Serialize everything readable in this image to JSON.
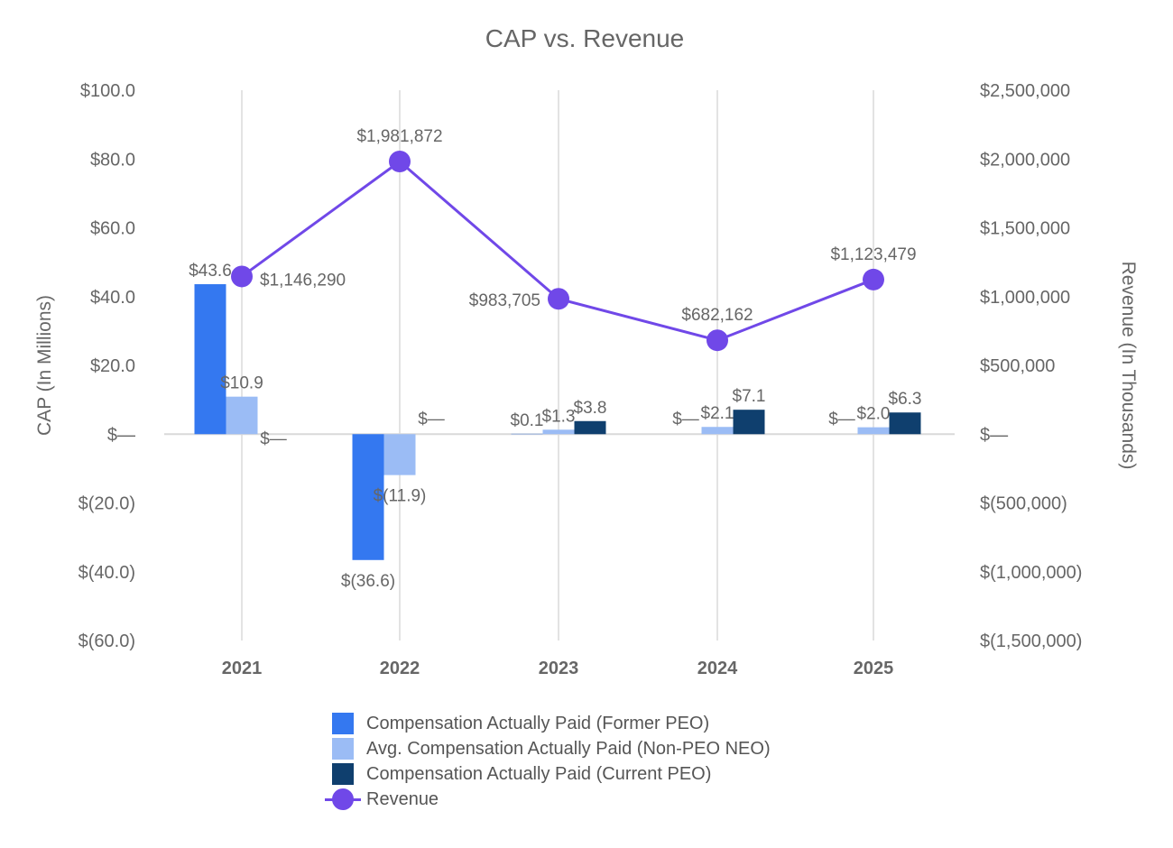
{
  "chart_data": {
    "type": "bar",
    "title": "CAP vs. Revenue",
    "ylabel": "CAP (In Millions)",
    "y2label": "Revenue (In Thousands)",
    "categories": [
      "2021",
      "2022",
      "2023",
      "2024",
      "2025"
    ],
    "ylim": [
      -60,
      100
    ],
    "y2lim": [
      -1500000,
      2500000
    ],
    "yticks": [
      100,
      80,
      60,
      40,
      20,
      0,
      -20,
      -40,
      -60
    ],
    "ytick_labels": [
      "$100.0",
      "$80.0",
      "$60.0",
      "$40.0",
      "$20.0",
      "$—",
      "$(20.0)",
      "$(40.0)",
      "$(60.0)"
    ],
    "y2ticks": [
      2500000,
      2000000,
      1500000,
      1000000,
      500000,
      0,
      -500000,
      -1000000,
      -1500000
    ],
    "y2tick_labels": [
      "$2,500,000",
      "$2,000,000",
      "$1,500,000",
      "$1,000,000",
      "$500,000",
      "$—",
      "$(500,000)",
      "$(1,000,000)",
      "$(1,500,000)"
    ],
    "grid": "vertical",
    "legend_position": "bottom",
    "series": [
      {
        "name": "Compensation Actually Paid (Former PEO)",
        "type": "bar",
        "axis": "left",
        "color": "#3478f0",
        "values": [
          43.6,
          -36.6,
          0.1,
          0,
          0
        ],
        "labels": [
          "$43.6",
          "$(36.6)",
          "$0.1",
          "$—",
          "$—"
        ]
      },
      {
        "name": "Avg. Compensation Actually Paid (Non-PEO NEO)",
        "type": "bar",
        "axis": "left",
        "color": "#9bbcf5",
        "values": [
          10.9,
          -11.9,
          1.3,
          2.1,
          2.0
        ],
        "labels": [
          "$10.9",
          "$(11.9)",
          "$1.3",
          "$2.1",
          "$2.0"
        ]
      },
      {
        "name": "Compensation Actually Paid (Current PEO)",
        "type": "bar",
        "axis": "left",
        "color": "#0f3f6e",
        "values": [
          0,
          0,
          3.8,
          7.1,
          6.3
        ],
        "labels": [
          "$—",
          "$—",
          "$3.8",
          "$7.1",
          "$6.3"
        ]
      },
      {
        "name": "Revenue",
        "type": "line",
        "axis": "right",
        "color": "#7048e8",
        "values": [
          1146290,
          1981872,
          983705,
          682162,
          1123479
        ],
        "labels": [
          "$1,146,290",
          "$1,981,872",
          "$983,705",
          "$682,162",
          "$1,123,479"
        ]
      }
    ]
  }
}
